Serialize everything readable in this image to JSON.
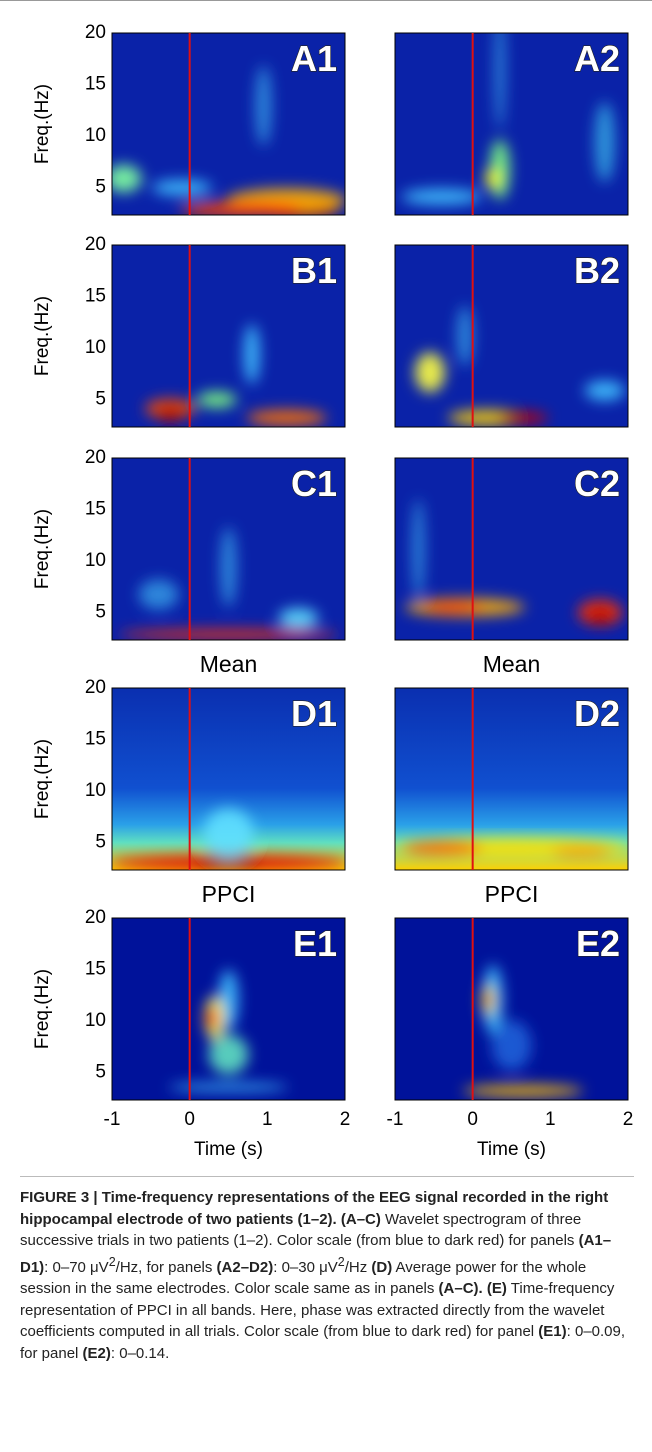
{
  "figure": {
    "panels": [
      {
        "label": "A1"
      },
      {
        "label": "A2"
      },
      {
        "label": "B1"
      },
      {
        "label": "B2"
      },
      {
        "label": "C1"
      },
      {
        "label": "C2"
      },
      {
        "label": "D1",
        "title": "Mean"
      },
      {
        "label": "D2",
        "title": "Mean"
      },
      {
        "label": "E1",
        "title": "PPCI"
      },
      {
        "label": "E2",
        "title": "PPCI"
      }
    ],
    "y_label": "Freq.(Hz)",
    "y_ticks": [
      20,
      15,
      10,
      5
    ],
    "x_ticks": [
      -1,
      0,
      1,
      2
    ],
    "x_label": "Time (s)"
  },
  "caption": {
    "runs": [
      {
        "text": "FIGURE 3 | Time-frequency representations of the EEG signal recorded in the right hippocampal electrode of two patients (1–2). (A–C)",
        "style": "b"
      },
      {
        "text": " Wavelet spectrogram of three successive trials in two patients (1–2). Color scale (from blue to dark red) for panels ",
        "style": "n"
      },
      {
        "text": "(A1–D1)",
        "style": "b"
      },
      {
        "text": ": 0–70 μV",
        "style": "n"
      },
      {
        "text": "2",
        "style": "sup"
      },
      {
        "text": "/Hz, for panels ",
        "style": "n"
      },
      {
        "text": "(A2–D2)",
        "style": "b"
      },
      {
        "text": ": 0–30 μV",
        "style": "n"
      },
      {
        "text": "2",
        "style": "sup"
      },
      {
        "text": "/Hz ",
        "style": "n"
      },
      {
        "text": "(D)",
        "style": "b"
      },
      {
        "text": " Average power for the whole session in the same electrodes. Color scale same as in panels ",
        "style": "n"
      },
      {
        "text": "(A–C). (E)",
        "style": "b"
      },
      {
        "text": " Time-frequency representation of PPCI in all bands. Here, phase was extracted directly from the wavelet coefficients computed in all trials. Color scale (from blue to dark red) for panel ",
        "style": "n"
      },
      {
        "text": "(E1)",
        "style": "b"
      },
      {
        "text": ": 0–0.09, for panel ",
        "style": "n"
      },
      {
        "text": "(E2)",
        "style": "b"
      },
      {
        "text": ": 0–0.14.",
        "style": "n"
      }
    ]
  }
}
